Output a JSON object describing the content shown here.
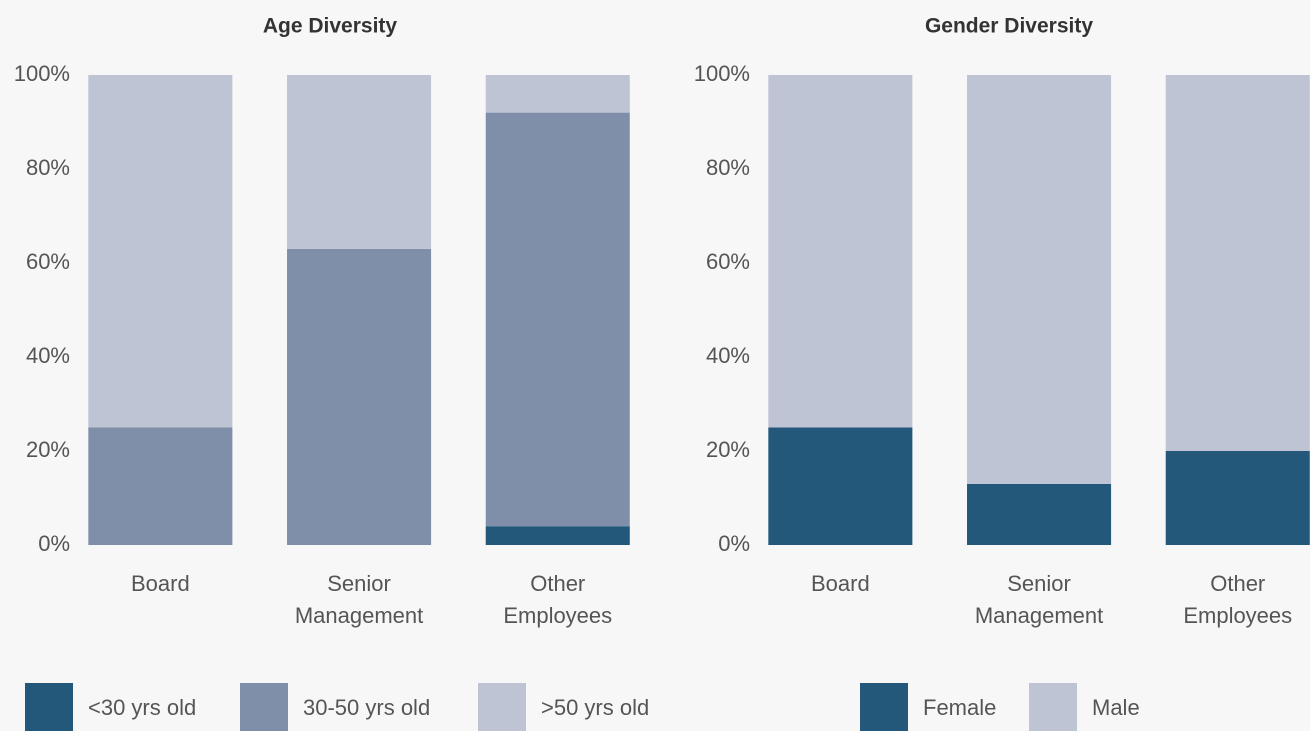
{
  "chart_data": [
    {
      "type": "bar",
      "stacked": true,
      "title": "Age Diversity",
      "categories": [
        "Board",
        "Senior Management",
        "Other Employees"
      ],
      "series": [
        {
          "name": "<30 yrs old",
          "color": "#23587a",
          "values": [
            0,
            0,
            4
          ]
        },
        {
          "name": "30-50 yrs old",
          "color": "#7f8fa9",
          "values": [
            25,
            63,
            88
          ]
        },
        {
          "name": ">50 yrs old",
          "color": "#bfc4d5",
          "values": [
            75,
            37,
            8
          ]
        }
      ],
      "ylim": [
        0,
        100
      ],
      "yticks": [
        {
          "value": 0,
          "label": "0%"
        },
        {
          "value": 20,
          "label": "20%"
        },
        {
          "value": 40,
          "label": "40%"
        },
        {
          "value": 60,
          "label": "60%"
        },
        {
          "value": 80,
          "label": "80%"
        },
        {
          "value": 100,
          "label": "100%"
        }
      ],
      "legend": "bottom"
    },
    {
      "type": "bar",
      "stacked": true,
      "title": "Gender Diversity",
      "categories": [
        "Board",
        "Senior Management",
        "Other Employees"
      ],
      "series": [
        {
          "name": "Female",
          "color": "#23587a",
          "values": [
            25,
            13,
            20
          ]
        },
        {
          "name": "Male",
          "color": "#bfc4d5",
          "values": [
            75,
            87,
            80
          ]
        }
      ],
      "ylim": [
        0,
        100
      ],
      "yticks": [
        {
          "value": 0,
          "label": "0%"
        },
        {
          "value": 20,
          "label": "20%"
        },
        {
          "value": 40,
          "label": "40%"
        },
        {
          "value": 60,
          "label": "60%"
        },
        {
          "value": 80,
          "label": "80%"
        },
        {
          "value": 100,
          "label": "100%"
        }
      ],
      "legend": "bottom"
    }
  ]
}
